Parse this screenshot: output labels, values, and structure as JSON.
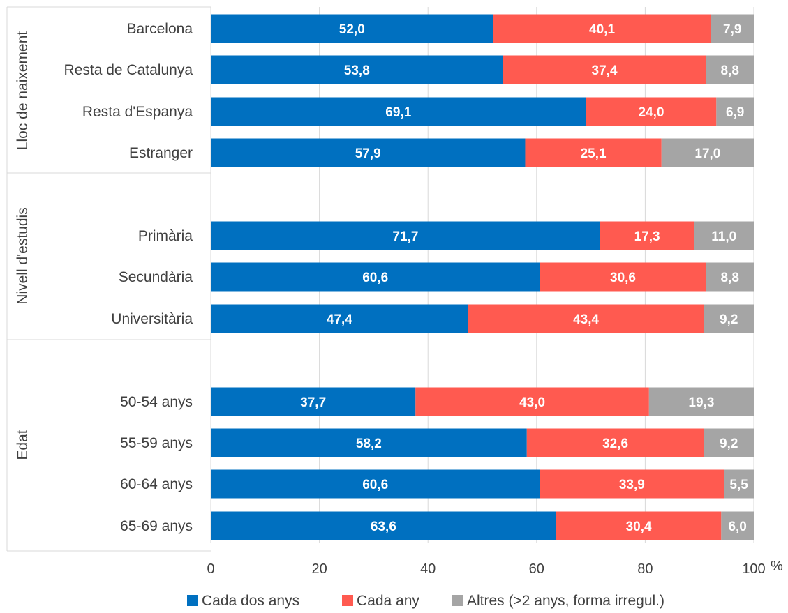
{
  "chart_data": {
    "type": "bar",
    "orientation": "horizontal",
    "stacked": true,
    "xlim": [
      0,
      100
    ],
    "xticks": [
      "0",
      "20",
      "40",
      "60",
      "80",
      "100"
    ],
    "xunit": "%",
    "grid": true,
    "legend_position": "bottom",
    "groups": [
      {
        "label": "Lloc de naixement",
        "categories": [
          "Barcelona",
          "Resta de Catalunya",
          "Resta d'Espanya",
          "Estranger"
        ]
      },
      {
        "label": "Nivell d'estudis",
        "categories": [
          "Primària",
          "Secundària",
          "Universitària"
        ]
      },
      {
        "label": "Edat",
        "categories": [
          "50-54 anys",
          "55-59 anys",
          "60-64 anys",
          "65-69 anys"
        ]
      }
    ],
    "categories": [
      "Barcelona",
      "Resta de Catalunya",
      "Resta d'Espanya",
      "Estranger",
      "Primària",
      "Secundària",
      "Universitària",
      "50-54 anys",
      "55-59 anys",
      "60-64 anys",
      "65-69 anys"
    ],
    "series": [
      {
        "name": "Cada dos anys",
        "color": "#0070C0",
        "values": [
          52.0,
          53.8,
          69.1,
          57.9,
          71.7,
          60.6,
          47.4,
          37.7,
          58.2,
          60.6,
          63.6
        ],
        "labels": [
          "52,0",
          "53,8",
          "69,1",
          "57,9",
          "71,7",
          "60,6",
          "47,4",
          "37,7",
          "58,2",
          "60,6",
          "63,6"
        ]
      },
      {
        "name": "Cada any",
        "color": "#FF5A50",
        "values": [
          40.1,
          37.4,
          24.0,
          25.1,
          17.3,
          30.6,
          43.4,
          43.0,
          32.6,
          33.9,
          30.4
        ],
        "labels": [
          "40,1",
          "37,4",
          "24,0",
          "25,1",
          "17,3",
          "30,6",
          "43,4",
          "43,0",
          "32,6",
          "33,9",
          "30,4"
        ]
      },
      {
        "name": "Altres (>2 anys, forma irregul.)",
        "color": "#A5A5A5",
        "values": [
          7.9,
          8.8,
          6.9,
          17.0,
          11.0,
          8.8,
          9.2,
          19.3,
          9.2,
          5.5,
          6.0
        ],
        "labels": [
          "7,9",
          "8,8",
          "6,9",
          "17,0",
          "11,0",
          "8,8",
          "9,2",
          "19,3",
          "9,2",
          "5,5",
          "6,0"
        ]
      }
    ]
  }
}
